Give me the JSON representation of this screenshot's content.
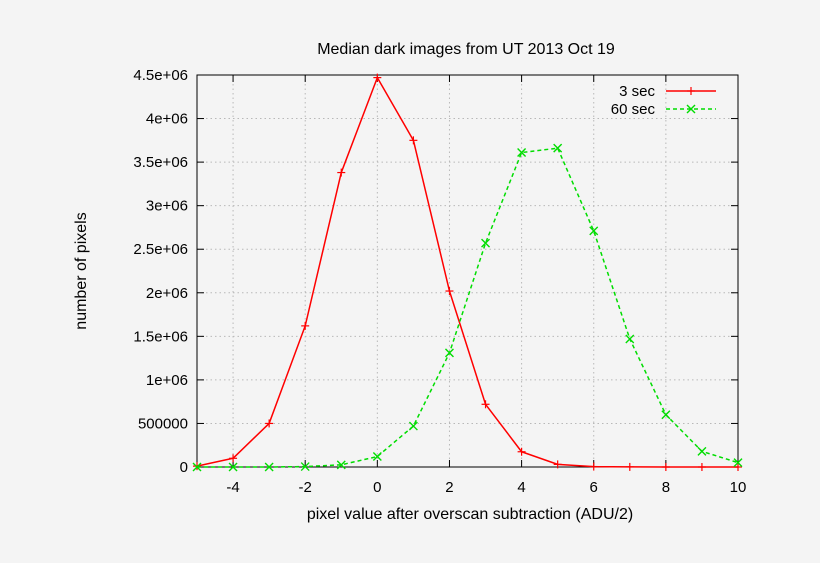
{
  "chart_data": {
    "type": "line",
    "title": "Median dark images from UT 2013 Oct 19",
    "xlabel": "pixel value after overscan subtraction (ADU/2)",
    "ylabel": "number of pixels",
    "xlim": [
      -5,
      10
    ],
    "ylim": [
      0,
      4500000
    ],
    "grid": true,
    "legend_position": "top-right",
    "x_ticks": [
      -4,
      -2,
      0,
      2,
      4,
      6,
      8,
      10
    ],
    "x_tick_labels": [
      "-4",
      "-2",
      "0",
      "2",
      "4",
      "6",
      "8",
      "10"
    ],
    "y_ticks": [
      0,
      500000,
      1000000,
      1500000,
      2000000,
      2500000,
      3000000,
      3500000,
      4000000,
      4500000
    ],
    "y_tick_labels": [
      "0",
      "500000",
      "1e+06",
      "1.5e+06",
      "2e+06",
      "2.5e+06",
      "3e+06",
      "3.5e+06",
      "4e+06",
      "4.5e+06"
    ],
    "series": [
      {
        "name": "3 sec",
        "color": "#ff0000",
        "dash": "solid",
        "marker": "plus",
        "x": [
          -5,
          -4,
          -3,
          -2,
          -1,
          0,
          1,
          2,
          3,
          4,
          5,
          6,
          7,
          8,
          9,
          10
        ],
        "y": [
          10000,
          100000,
          500000,
          1620000,
          3380000,
          4470000,
          3750000,
          2020000,
          720000,
          175000,
          30000,
          5000,
          1000,
          0,
          0,
          0
        ]
      },
      {
        "name": "60 sec",
        "color": "#00dd00",
        "dash": "dashed",
        "marker": "cross",
        "x": [
          -5,
          -4,
          -3,
          -2,
          -1,
          0,
          1,
          2,
          3,
          4,
          5,
          6,
          7,
          8,
          9,
          10
        ],
        "y": [
          0,
          0,
          0,
          5000,
          25000,
          120000,
          470000,
          1310000,
          2570000,
          3610000,
          3660000,
          2710000,
          1470000,
          600000,
          180000,
          50000
        ]
      }
    ]
  }
}
